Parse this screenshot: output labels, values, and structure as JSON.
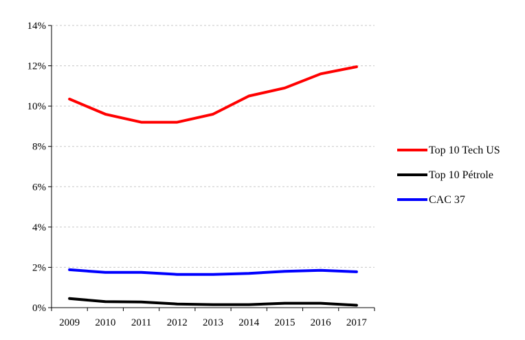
{
  "chart_data": {
    "type": "line",
    "title": "",
    "xlabel": "",
    "ylabel": "",
    "x": [
      "2009",
      "2010",
      "2011",
      "2012",
      "2013",
      "2014",
      "2015",
      "2016",
      "2017"
    ],
    "ylim": [
      0,
      14
    ],
    "y_ticks": [
      "0%",
      "2%",
      "4%",
      "6%",
      "8%",
      "10%",
      "12%",
      "14%"
    ],
    "y_tick_values": [
      0,
      2,
      4,
      6,
      8,
      10,
      12,
      14
    ],
    "grid": "horizontal dashed",
    "legend_position": "right",
    "series": [
      {
        "name": "Top 10 Tech US",
        "color": "#ff0000",
        "values": [
          10.35,
          9.6,
          9.2,
          9.2,
          9.6,
          10.5,
          10.9,
          11.6,
          11.95
        ]
      },
      {
        "name": "Top 10 Pétrole",
        "color": "#000000",
        "values": [
          0.45,
          0.3,
          0.28,
          0.18,
          0.15,
          0.15,
          0.22,
          0.22,
          0.12
        ]
      },
      {
        "name": "CAC 37",
        "color": "#0000ff",
        "values": [
          1.88,
          1.75,
          1.75,
          1.65,
          1.65,
          1.7,
          1.8,
          1.85,
          1.78
        ]
      }
    ]
  }
}
